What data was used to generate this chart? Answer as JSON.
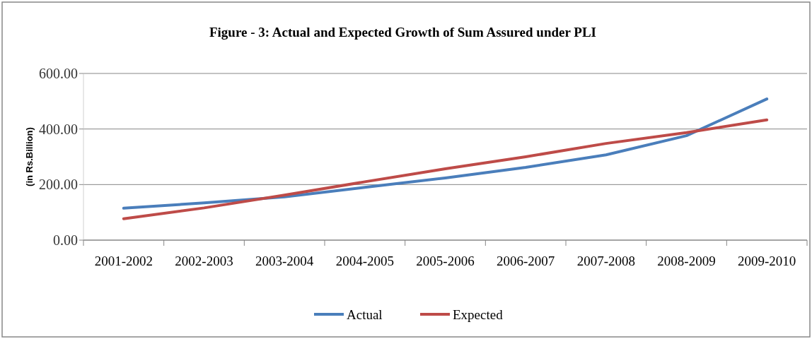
{
  "chart_data": {
    "type": "line",
    "title": "Figure - 3: Actual and Expected Growth of Sum Assured under PLI",
    "ylabel": "(in Rs.Billion)",
    "categories": [
      "2001-2002",
      "2002-2003",
      "2003-2004",
      "2004-2005",
      "2005-2006",
      "2006-2007",
      "2007-2008",
      "2008-2009",
      "2009-2010"
    ],
    "series": [
      {
        "name": "Actual",
        "color": "#4a7ebb",
        "values": [
          115,
          134,
          156,
          190,
          224,
          262,
          307,
          376,
          508
        ]
      },
      {
        "name": "Expected",
        "color": "#be4b48",
        "values": [
          77,
          116,
          162,
          210,
          257,
          300,
          348,
          387,
          433
        ]
      }
    ],
    "ylim": [
      0,
      600
    ],
    "yticks": [
      {
        "value": 0,
        "label": "0.00"
      },
      {
        "value": 200,
        "label": "200.00"
      },
      {
        "value": 400,
        "label": "400.00"
      },
      {
        "value": 600,
        "label": "600.00"
      }
    ],
    "grid": "y",
    "legend": "bottom",
    "marker": "none",
    "line_style": "solid"
  }
}
